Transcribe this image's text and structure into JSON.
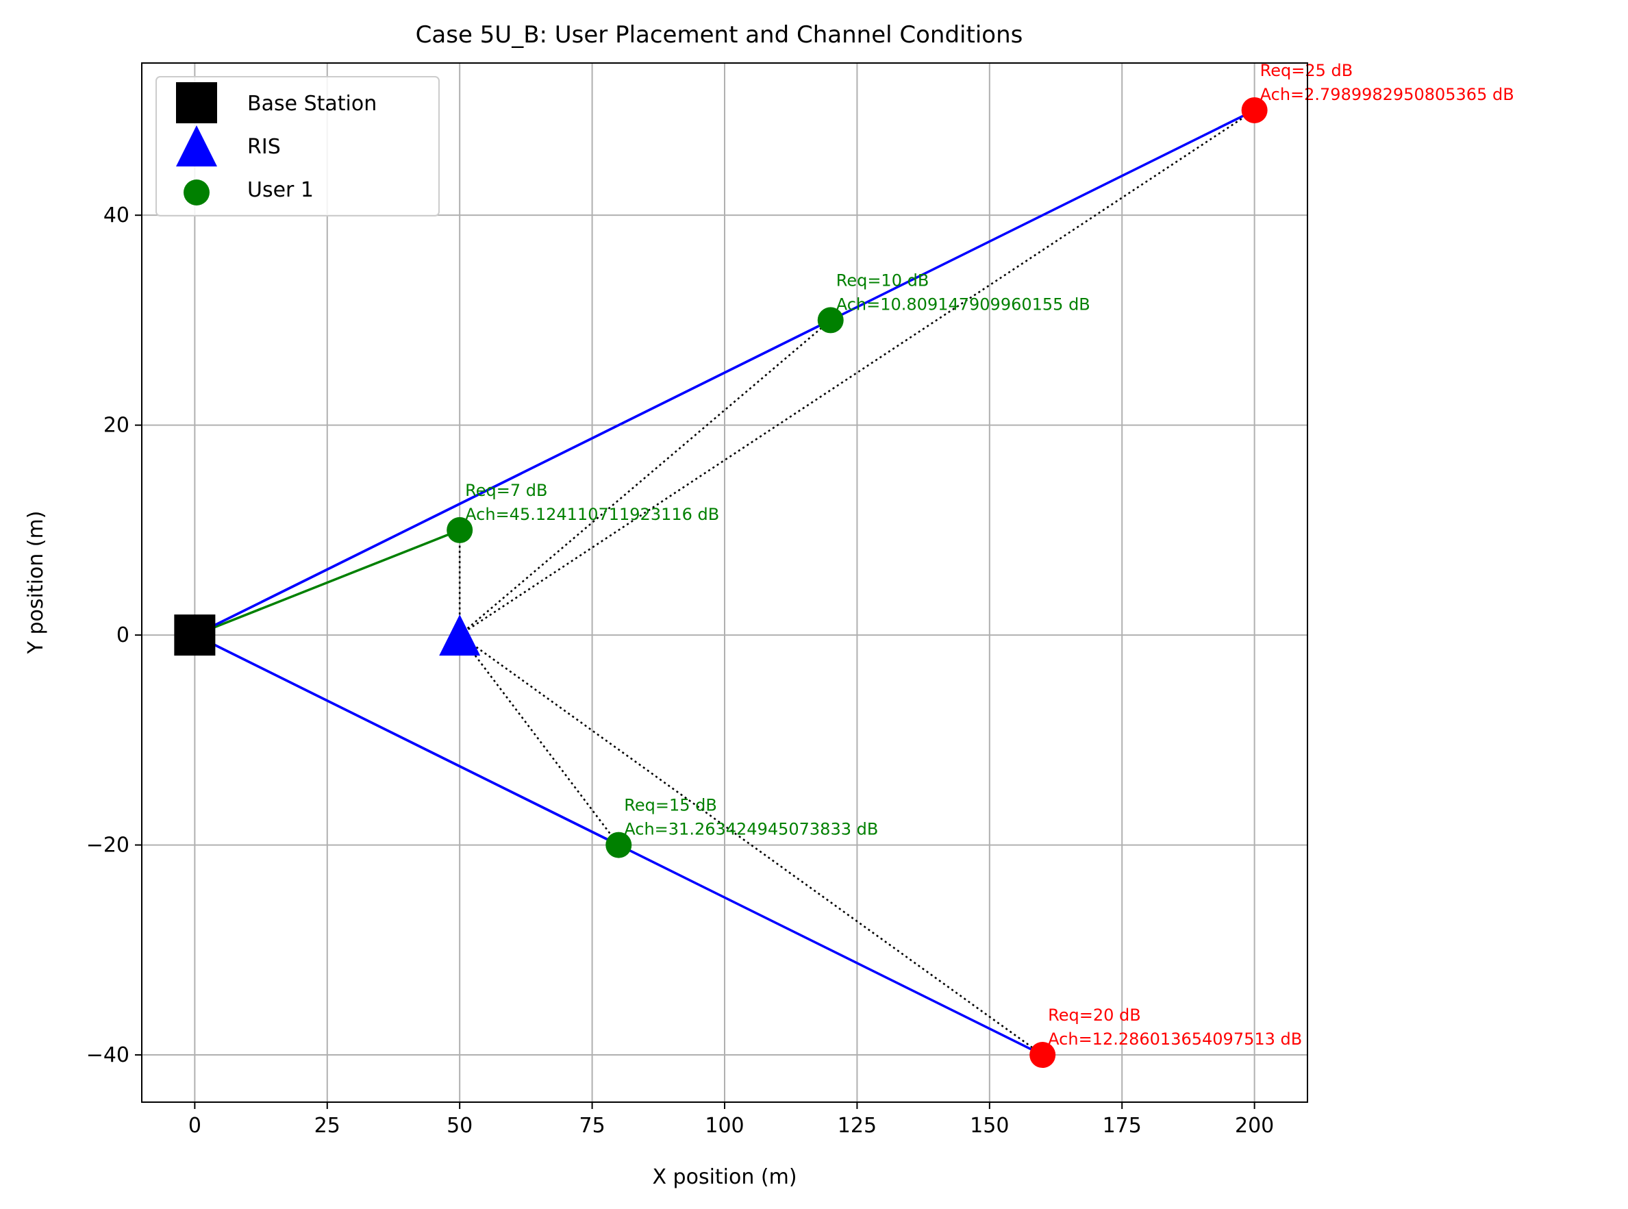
{
  "chart_data": {
    "type": "scatter",
    "title": "Case 5U_B: User Placement and Channel Conditions",
    "xlabel": "X position (m)",
    "ylabel": "Y position (m)",
    "xlim": [
      -10,
      210
    ],
    "ylim": [
      -44.5,
      54.5
    ],
    "xticks": [
      0,
      25,
      50,
      75,
      100,
      125,
      150,
      175,
      200
    ],
    "yticks": [
      -40,
      -20,
      0,
      20,
      40
    ],
    "grid": true,
    "legend": {
      "placement": "top-left",
      "entries": [
        {
          "label": "Base Station",
          "marker": "square",
          "color": "#000000"
        },
        {
          "label": "RIS",
          "marker": "triangle",
          "color": "#0000ff"
        },
        {
          "label": "User 1",
          "marker": "circle",
          "color": "#008000"
        }
      ]
    },
    "base_station": {
      "x": 0,
      "y": 0,
      "color": "#000000"
    },
    "ris": {
      "x": 50,
      "y": 0,
      "color": "#0000ff"
    },
    "users": [
      {
        "x": 50,
        "y": 10,
        "color": "#008000",
        "req": "Req=7 dB",
        "ach": "Ach=45.12411071192311​6 dB",
        "direct_link_color": "#008000"
      },
      {
        "x": 120,
        "y": 30,
        "color": "#008000",
        "req": "Req=10 dB",
        "ach": "Ach=10.809147909960155 dB",
        "direct_link_color": "#0000ff"
      },
      {
        "x": 80,
        "y": -20,
        "color": "#008000",
        "req": "Req=15 dB",
        "ach": "Ach=31.263424945073833 dB",
        "direct_link_color": "#0000ff"
      },
      {
        "x": 160,
        "y": -40,
        "color": "#ff0000",
        "req": "Req=20 dB",
        "ach": "Ach=12.286013654097513 dB",
        "direct_link_color": "#0000ff"
      },
      {
        "x": 200,
        "y": 50,
        "color": "#ff0000",
        "req": "Req=25 dB",
        "ach": "Ach=2.7989982950805365 dB",
        "direct_link_color": "#0000ff"
      }
    ],
    "ris_link_color": "#000000"
  }
}
